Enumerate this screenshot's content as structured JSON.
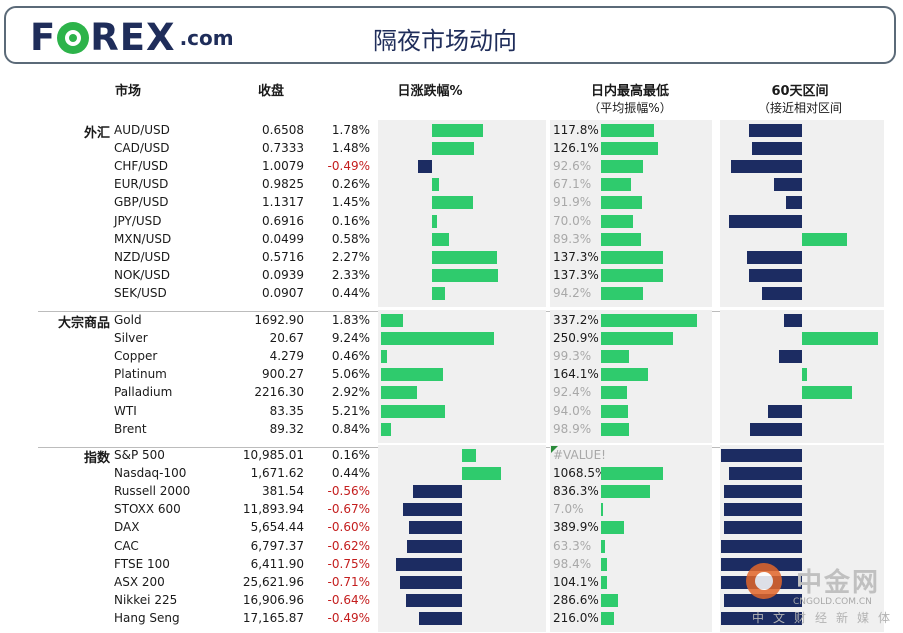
{
  "header": {
    "logo_text": "F",
    "logo_text2": "REX",
    "logo_com": ".com",
    "title": "隔夜市场动向"
  },
  "columns": {
    "market": "市场",
    "close": "收盘",
    "change": "日涨跌幅%",
    "range_title": "日内最高最低",
    "range_sub": "（平均振幅%）",
    "sixty_title": "60天区间",
    "sixty_sub": "（接近相对区间"
  },
  "colors": {
    "positive": "#2fcb6d",
    "negative": "#1c2c62",
    "neg_text": "#c41e1e",
    "dim_text": "#a8a8a8",
    "brand": "#1f2d5a",
    "logo_o": "#2db34a"
  },
  "chart_data": {
    "type": "table",
    "groups": [
      {
        "name": "外汇",
        "rows": [
          {
            "label": "AUD/USD",
            "close": "0.6508",
            "change": 1.78,
            "change_text": "1.78%",
            "range": 117.8,
            "range_text": "117.8%",
            "sixty": -0.33
          },
          {
            "label": "CAD/USD",
            "close": "0.7333",
            "change": 1.48,
            "change_text": "1.48%",
            "range": 126.1,
            "range_text": "126.1%",
            "sixty": -0.31
          },
          {
            "label": "CHF/USD",
            "close": "1.0079",
            "change": -0.49,
            "change_text": "-0.49%",
            "range": 92.6,
            "range_text": "92.6%",
            "sixty": -0.44
          },
          {
            "label": "EUR/USD",
            "close": "0.9825",
            "change": 0.26,
            "change_text": "0.26%",
            "range": 67.1,
            "range_text": "67.1%",
            "sixty": -0.17
          },
          {
            "label": "GBP/USD",
            "close": "1.1317",
            "change": 1.45,
            "change_text": "1.45%",
            "range": 91.9,
            "range_text": "91.9%",
            "sixty": -0.1
          },
          {
            "label": "JPY/USD",
            "close": "0.6916",
            "change": 0.16,
            "change_text": "0.16%",
            "range": 70.0,
            "range_text": "70.0%",
            "sixty": -0.45
          },
          {
            "label": "MXN/USD",
            "close": "0.0499",
            "change": 0.58,
            "change_text": "0.58%",
            "range": 89.3,
            "range_text": "89.3%",
            "sixty": 0.28
          },
          {
            "label": "NZD/USD",
            "close": "0.5716",
            "change": 2.27,
            "change_text": "2.27%",
            "range": 137.3,
            "range_text": "137.3%",
            "sixty": -0.34
          },
          {
            "label": "NOK/USD",
            "close": "0.0939",
            "change": 2.33,
            "change_text": "2.33%",
            "range": 137.3,
            "range_text": "137.3%",
            "sixty": -0.33
          },
          {
            "label": "SEK/USD",
            "close": "0.0907",
            "change": 0.44,
            "change_text": "0.44%",
            "range": 94.2,
            "range_text": "94.2%",
            "sixty": -0.25
          }
        ]
      },
      {
        "name": "大宗商品",
        "rows": [
          {
            "label": "Gold",
            "close": "1692.90",
            "change": 1.83,
            "change_text": "1.83%",
            "range": 337.2,
            "range_text": "337.2%",
            "sixty": -0.11
          },
          {
            "label": "Silver",
            "close": "20.67",
            "change": 9.24,
            "change_text": "9.24%",
            "range": 250.9,
            "range_text": "250.9%",
            "sixty": 0.47
          },
          {
            "label": "Copper",
            "close": "4.279",
            "change": 0.46,
            "change_text": "0.46%",
            "range": 99.3,
            "range_text": "99.3%",
            "sixty": -0.14
          },
          {
            "label": "Platinum",
            "close": "900.27",
            "change": 5.06,
            "change_text": "5.06%",
            "range": 164.1,
            "range_text": "164.1%",
            "sixty": 0.03
          },
          {
            "label": "Palladium",
            "close": "2216.30",
            "change": 2.92,
            "change_text": "2.92%",
            "range": 92.4,
            "range_text": "92.4%",
            "sixty": 0.31
          },
          {
            "label": "WTI",
            "close": "83.35",
            "change": 5.21,
            "change_text": "5.21%",
            "range": 94.0,
            "range_text": "94.0%",
            "sixty": -0.21
          },
          {
            "label": "Brent",
            "close": "89.32",
            "change": 0.84,
            "change_text": "0.84%",
            "range": 98.9,
            "range_text": "98.9%",
            "sixty": -0.32
          }
        ]
      },
      {
        "name": "指数",
        "rows": [
          {
            "label": "S&P 500",
            "close": "10,985.01",
            "change": 0.16,
            "change_text": "0.16%",
            "range": null,
            "range_text": "#VALUE!",
            "sixty": -0.5
          },
          {
            "label": "Nasdaq-100",
            "close": "1,671.62",
            "change": 0.44,
            "change_text": "0.44%",
            "range": 1068.5,
            "range_text": "1068.5%",
            "sixty": -0.45
          },
          {
            "label": "Russell 2000",
            "close": "381.54",
            "change": -0.56,
            "change_text": "-0.56%",
            "range": 836.3,
            "range_text": "836.3%",
            "sixty": -0.48
          },
          {
            "label": "STOXX 600",
            "close": "11,893.94",
            "change": -0.67,
            "change_text": "-0.67%",
            "range": 7.0,
            "range_text": "7.0%",
            "sixty": -0.48
          },
          {
            "label": "DAX",
            "close": "5,654.44",
            "change": -0.6,
            "change_text": "-0.60%",
            "range": 389.9,
            "range_text": "389.9%",
            "sixty": -0.48
          },
          {
            "label": "CAC",
            "close": "6,797.37",
            "change": -0.62,
            "change_text": "-0.62%",
            "range": 63.3,
            "range_text": "63.3%",
            "sixty": -0.5
          },
          {
            "label": "FTSE 100",
            "close": "6,411.90",
            "change": -0.75,
            "change_text": "-0.75%",
            "range": 98.4,
            "range_text": "98.4%",
            "sixty": -0.5
          },
          {
            "label": "ASX 200",
            "close": "25,621.96",
            "change": -0.71,
            "change_text": "-0.71%",
            "range": 104.1,
            "range_text": "104.1%",
            "sixty": -0.5
          },
          {
            "label": "Nikkei 225",
            "close": "16,906.96",
            "change": -0.64,
            "change_text": "-0.64%",
            "range": 286.6,
            "range_text": "286.6%",
            "sixty": -0.48
          },
          {
            "label": "Hang Seng",
            "close": "17,165.87",
            "change": -0.49,
            "change_text": "-0.49%",
            "range": 216.0,
            "range_text": "216.0%",
            "sixty": -0.5
          }
        ]
      }
    ]
  },
  "watermark": {
    "cn": "中金网",
    "url": "CNGOLD.COM.CN",
    "sub": "中文财经新媒体"
  }
}
